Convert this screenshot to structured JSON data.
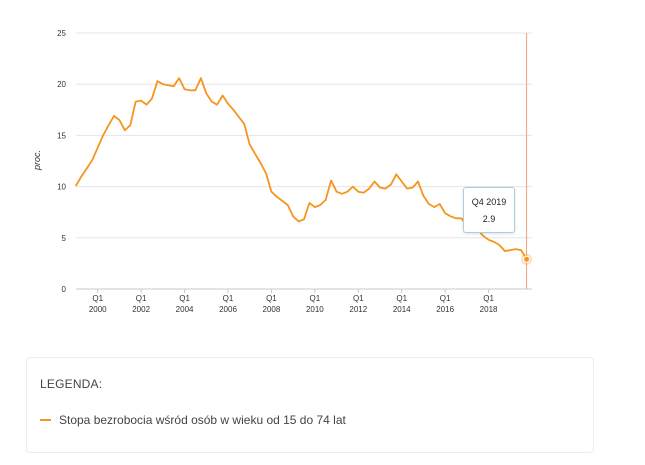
{
  "chart_data": {
    "type": "line",
    "ylabel": "proc.",
    "ylim": [
      0,
      25
    ],
    "yticks": [
      "0",
      "5",
      "10",
      "15",
      "20",
      "25"
    ],
    "xlim": [
      1999.0,
      2020.0
    ],
    "xticks": [
      {
        "x": 2000.0,
        "q": "Q1",
        "year": "2000"
      },
      {
        "x": 2002.0,
        "q": "Q1",
        "year": "2002"
      },
      {
        "x": 2004.0,
        "q": "Q1",
        "year": "2004"
      },
      {
        "x": 2006.0,
        "q": "Q1",
        "year": "2006"
      },
      {
        "x": 2008.0,
        "q": "Q1",
        "year": "2008"
      },
      {
        "x": 2010.0,
        "q": "Q1",
        "year": "2010"
      },
      {
        "x": 2012.0,
        "q": "Q1",
        "year": "2012"
      },
      {
        "x": 2014.0,
        "q": "Q1",
        "year": "2014"
      },
      {
        "x": 2016.0,
        "q": "Q1",
        "year": "2016"
      },
      {
        "x": 2018.0,
        "q": "Q1",
        "year": "2018"
      }
    ],
    "series": [
      {
        "name": "Stopa bezrobocia wśród osób w wieku od 15 do 74 lat",
        "x": [
          1999.0,
          1999.25,
          1999.5,
          1999.75,
          2000.0,
          2000.25,
          2000.5,
          2000.75,
          2001.0,
          2001.25,
          2001.5,
          2001.75,
          2002.0,
          2002.25,
          2002.5,
          2002.75,
          2003.0,
          2003.25,
          2003.5,
          2003.75,
          2004.0,
          2004.25,
          2004.5,
          2004.75,
          2005.0,
          2005.25,
          2005.5,
          2005.75,
          2006.0,
          2006.25,
          2006.5,
          2006.75,
          2007.0,
          2007.25,
          2007.5,
          2007.75,
          2008.0,
          2008.25,
          2008.5,
          2008.75,
          2009.0,
          2009.25,
          2009.5,
          2009.75,
          2010.0,
          2010.25,
          2010.5,
          2010.75,
          2011.0,
          2011.25,
          2011.5,
          2011.75,
          2012.0,
          2012.25,
          2012.5,
          2012.75,
          2013.0,
          2013.25,
          2013.5,
          2013.75,
          2014.0,
          2014.25,
          2014.5,
          2014.75,
          2015.0,
          2015.25,
          2015.5,
          2015.75,
          2016.0,
          2016.25,
          2016.5,
          2016.75,
          2017.0,
          2017.25,
          2017.5,
          2017.75,
          2018.0,
          2018.25,
          2018.5,
          2018.75,
          2019.0,
          2019.25,
          2019.5,
          2019.75
        ],
        "values": [
          10.1,
          11.0,
          11.8,
          12.6,
          13.8,
          15.0,
          16.0,
          16.9,
          16.5,
          15.5,
          16.0,
          18.3,
          18.4,
          18.0,
          18.6,
          20.3,
          20.0,
          19.9,
          19.8,
          20.6,
          19.5,
          19.4,
          19.4,
          20.6,
          19.1,
          18.3,
          18.0,
          18.9,
          18.1,
          17.5,
          16.8,
          16.1,
          14.1,
          13.2,
          12.3,
          11.3,
          9.5,
          9.0,
          8.6,
          8.2,
          7.1,
          6.6,
          6.8,
          8.4,
          8.0,
          8.2,
          8.7,
          10.6,
          9.5,
          9.3,
          9.5,
          10.0,
          9.5,
          9.4,
          9.8,
          10.5,
          9.9,
          9.8,
          10.2,
          11.2,
          10.5,
          9.8,
          9.9,
          10.5,
          9.1,
          8.3,
          8.0,
          8.3,
          7.4,
          7.1,
          6.9,
          6.9,
          6.2,
          5.9,
          5.8,
          5.2,
          4.8,
          4.6,
          4.3,
          3.7,
          3.8,
          3.9,
          3.8,
          2.9
        ]
      }
    ],
    "tooltip": {
      "period": "Q4 2019",
      "value": "2.9"
    }
  },
  "colors": {
    "line": "#f7941d",
    "grid": "#e6e6e6",
    "axis": "#c8c8c8",
    "crosshair": "#f2a07b",
    "tooltip_border": "#a9cfe0"
  },
  "legend": {
    "title": "LEGENDA:",
    "items": [
      {
        "label": "Stopa bezrobocia wśród osób w wieku od 15 do 74 lat"
      }
    ]
  }
}
